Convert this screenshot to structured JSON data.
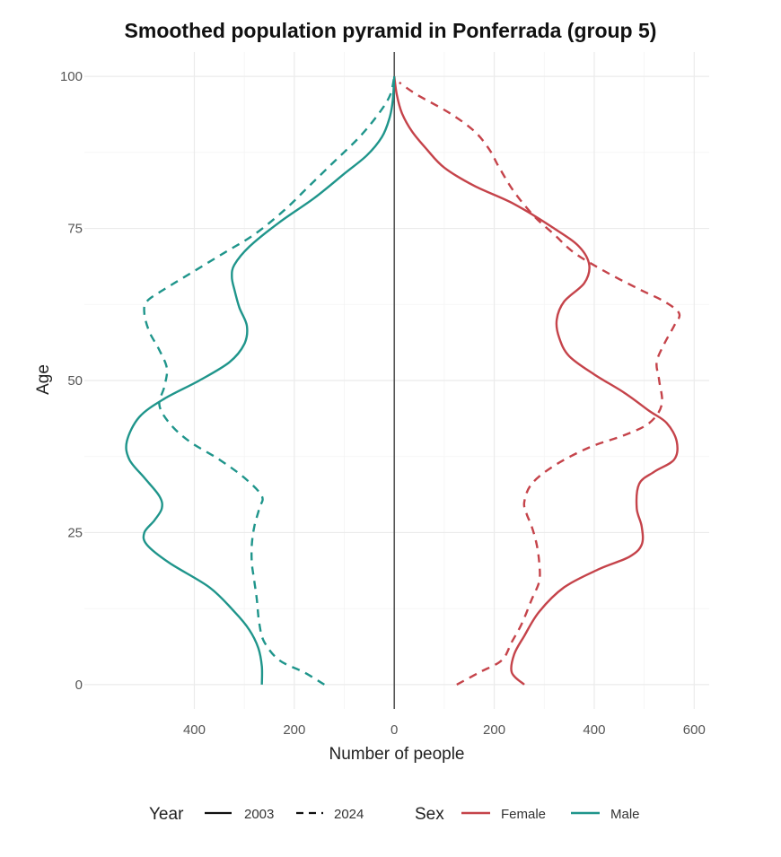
{
  "chart_data": {
    "type": "line",
    "title": "Smoothed population pyramid in Ponferrada (group 5)",
    "xlabel": "Number of people",
    "ylabel": "Age",
    "xlim": [
      -620,
      630
    ],
    "ylim": [
      -4,
      104
    ],
    "x_ticks": [
      {
        "value": -400,
        "label": "400"
      },
      {
        "value": -200,
        "label": "200"
      },
      {
        "value": 0,
        "label": "0"
      },
      {
        "value": 200,
        "label": "200"
      },
      {
        "value": 400,
        "label": "400"
      },
      {
        "value": 600,
        "label": "600"
      }
    ],
    "y_ticks": [
      0,
      25,
      50,
      75,
      100
    ],
    "grid": true,
    "legend_position": "bottom",
    "legend": {
      "year_title": "Year",
      "year_items": [
        {
          "label": "2003",
          "dash": "solid"
        },
        {
          "label": "2024",
          "dash": "dashed"
        }
      ],
      "sex_title": "Sex",
      "sex_items": [
        {
          "label": "Female",
          "color": "#c5434a"
        },
        {
          "label": "Male",
          "color": "#1f958b"
        }
      ]
    },
    "series": [
      {
        "year": "2003",
        "sex": "Female",
        "color": "#c5434a",
        "dash": "solid",
        "points": [
          [
            260,
            0
          ],
          [
            235,
            2
          ],
          [
            240,
            5
          ],
          [
            260,
            8
          ],
          [
            290,
            12
          ],
          [
            340,
            16
          ],
          [
            410,
            19
          ],
          [
            470,
            21
          ],
          [
            495,
            23
          ],
          [
            495,
            26
          ],
          [
            485,
            29
          ],
          [
            490,
            33
          ],
          [
            520,
            35
          ],
          [
            560,
            37
          ],
          [
            565,
            40
          ],
          [
            545,
            43
          ],
          [
            510,
            45
          ],
          [
            460,
            48
          ],
          [
            400,
            51
          ],
          [
            350,
            54
          ],
          [
            330,
            57
          ],
          [
            325,
            60
          ],
          [
            340,
            63
          ],
          [
            380,
            66
          ],
          [
            390,
            69
          ],
          [
            370,
            72
          ],
          [
            320,
            75
          ],
          [
            240,
            79
          ],
          [
            160,
            82
          ],
          [
            100,
            85
          ],
          [
            65,
            88
          ],
          [
            35,
            91
          ],
          [
            15,
            94
          ],
          [
            5,
            97
          ],
          [
            0,
            100
          ]
        ]
      },
      {
        "year": "2024",
        "sex": "Female",
        "color": "#c5434a",
        "dash": "dashed",
        "points": [
          [
            125,
            0
          ],
          [
            170,
            2
          ],
          [
            215,
            4
          ],
          [
            235,
            7
          ],
          [
            255,
            10
          ],
          [
            275,
            14
          ],
          [
            290,
            17
          ],
          [
            290,
            20
          ],
          [
            285,
            23
          ],
          [
            275,
            26
          ],
          [
            265,
            28
          ],
          [
            260,
            30
          ],
          [
            275,
            33
          ],
          [
            320,
            36
          ],
          [
            390,
            39
          ],
          [
            460,
            41
          ],
          [
            510,
            43
          ],
          [
            535,
            46
          ],
          [
            530,
            50
          ],
          [
            525,
            53
          ],
          [
            540,
            56
          ],
          [
            560,
            59
          ],
          [
            570,
            61
          ],
          [
            540,
            63
          ],
          [
            490,
            65
          ],
          [
            420,
            68
          ],
          [
            360,
            71
          ],
          [
            320,
            74
          ],
          [
            280,
            77
          ],
          [
            240,
            81
          ],
          [
            210,
            85
          ],
          [
            190,
            88
          ],
          [
            160,
            91
          ],
          [
            110,
            94
          ],
          [
            45,
            97
          ],
          [
            10,
            99
          ]
        ]
      },
      {
        "year": "2003",
        "sex": "Male",
        "color": "#1f958b",
        "dash": "solid",
        "points": [
          [
            -265,
            0
          ],
          [
            -265,
            3
          ],
          [
            -272,
            6
          ],
          [
            -290,
            9
          ],
          [
            -320,
            12
          ],
          [
            -370,
            16
          ],
          [
            -450,
            20
          ],
          [
            -495,
            23
          ],
          [
            -500,
            25
          ],
          [
            -480,
            27
          ],
          [
            -465,
            29
          ],
          [
            -470,
            31
          ],
          [
            -500,
            34
          ],
          [
            -530,
            37
          ],
          [
            -535,
            40
          ],
          [
            -510,
            44
          ],
          [
            -460,
            47
          ],
          [
            -390,
            50
          ],
          [
            -330,
            53
          ],
          [
            -300,
            56
          ],
          [
            -295,
            59
          ],
          [
            -310,
            62
          ],
          [
            -320,
            65
          ],
          [
            -325,
            67
          ],
          [
            -320,
            69
          ],
          [
            -290,
            72
          ],
          [
            -230,
            76
          ],
          [
            -160,
            80
          ],
          [
            -100,
            84
          ],
          [
            -55,
            87
          ],
          [
            -25,
            90
          ],
          [
            -10,
            93
          ],
          [
            -3,
            96
          ],
          [
            0,
            100
          ]
        ]
      },
      {
        "year": "2024",
        "sex": "Male",
        "color": "#1f958b",
        "dash": "dashed",
        "points": [
          [
            -140,
            0
          ],
          [
            -180,
            2
          ],
          [
            -230,
            4
          ],
          [
            -260,
            7
          ],
          [
            -270,
            10
          ],
          [
            -275,
            14
          ],
          [
            -280,
            17
          ],
          [
            -285,
            20
          ],
          [
            -285,
            23
          ],
          [
            -280,
            26
          ],
          [
            -270,
            29
          ],
          [
            -265,
            31
          ],
          [
            -300,
            34
          ],
          [
            -350,
            37
          ],
          [
            -410,
            40
          ],
          [
            -450,
            43
          ],
          [
            -470,
            46
          ],
          [
            -460,
            49
          ],
          [
            -455,
            52
          ],
          [
            -470,
            55
          ],
          [
            -490,
            58
          ],
          [
            -500,
            61
          ],
          [
            -495,
            63
          ],
          [
            -460,
            65
          ],
          [
            -400,
            68
          ],
          [
            -340,
            71
          ],
          [
            -280,
            74
          ],
          [
            -220,
            78
          ],
          [
            -170,
            82
          ],
          [
            -120,
            86
          ],
          [
            -70,
            90
          ],
          [
            -30,
            94
          ],
          [
            -8,
            97
          ],
          [
            0,
            100
          ]
        ]
      }
    ]
  }
}
